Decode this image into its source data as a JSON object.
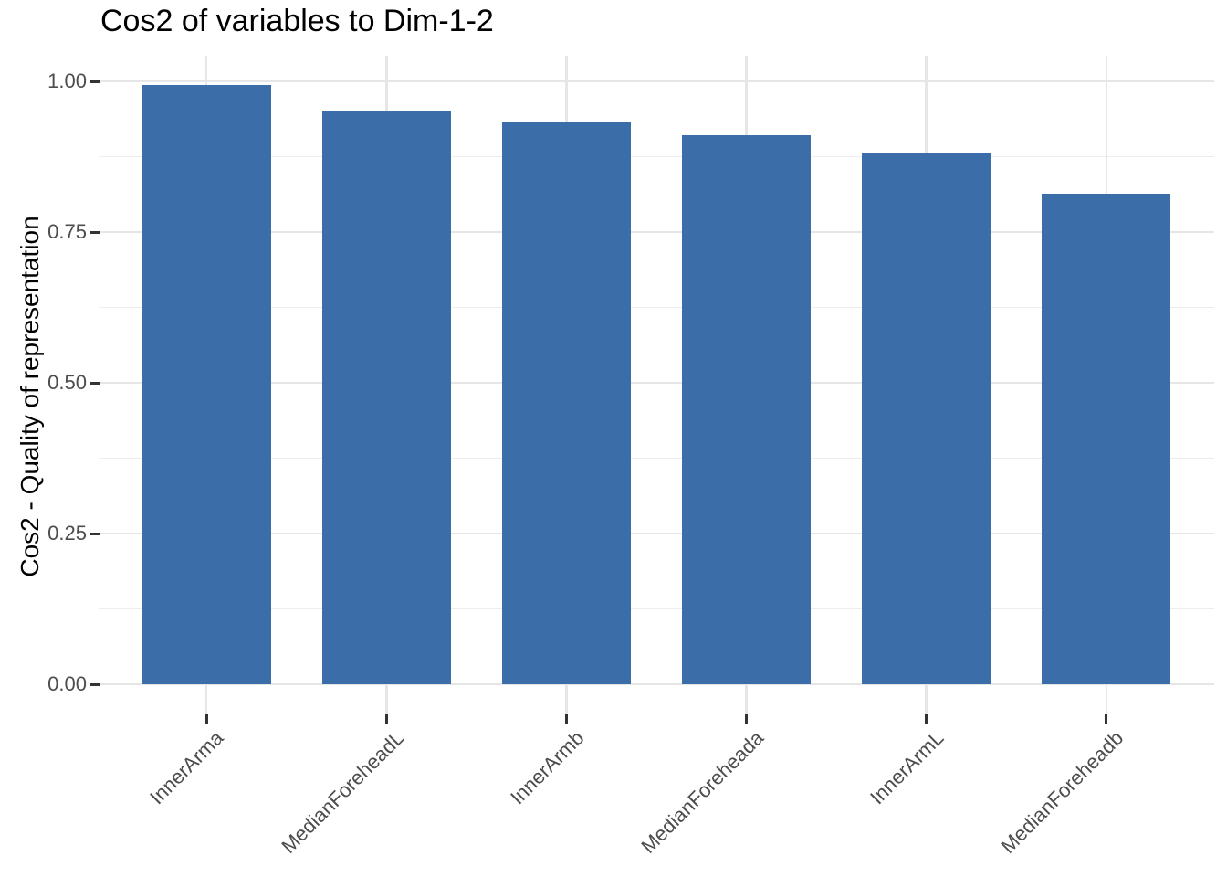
{
  "chart_data": {
    "type": "bar",
    "title": "Cos2 of variables to Dim-1-2",
    "xlabel": "",
    "ylabel": "Cos2 - Quality of representation",
    "categories": [
      "InnerArma",
      "MedianForeheadL",
      "InnerArmb",
      "MedianForeheada",
      "InnerArmL",
      "MedianForeheadb"
    ],
    "values": [
      0.994,
      0.952,
      0.934,
      0.911,
      0.882,
      0.813
    ],
    "ylim": [
      0,
      1.0
    ],
    "yticks": [
      0,
      0.25,
      0.5,
      0.75,
      1.0
    ],
    "ytick_labels": [
      "0.00",
      "0.25",
      "0.50",
      "0.75",
      "1.00"
    ],
    "x_tick_label_angle_deg": 45,
    "legend": "none",
    "grid": {
      "major_horizontal": true,
      "minor_horizontal": true,
      "major_vertical_at_bar_centers": true,
      "minor_vertical": false
    },
    "colors": {
      "bar": "#3B6EA8",
      "grid_major": "#E6E6E6",
      "grid_minor": "#EDEDED",
      "axis_text": "#4D4D4D",
      "axis_title": "#000000",
      "title": "#000000",
      "tick_mark": "#333333",
      "background": "#FFFFFF"
    }
  }
}
